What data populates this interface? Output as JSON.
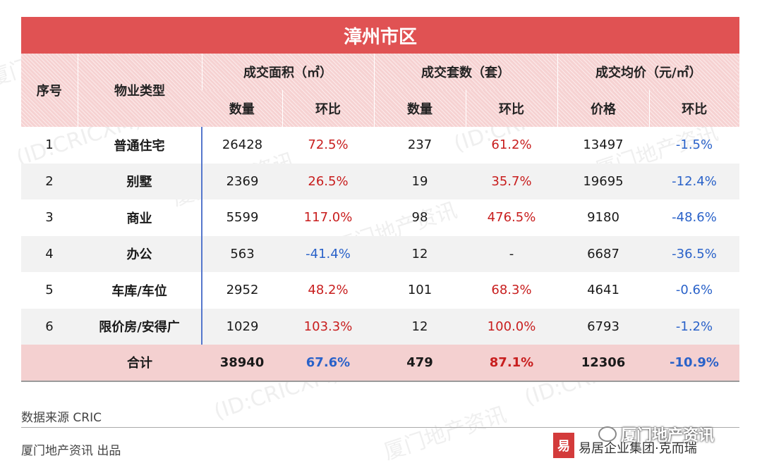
{
  "title": "漳州市区",
  "header": {
    "seq": "序号",
    "type": "物业类型",
    "group_area": "成交面积（㎡）",
    "group_units": "成交套数（套）",
    "group_price": "成交均价（元/㎡）",
    "qty": "数量",
    "mom": "环比",
    "price": "价格"
  },
  "rows": [
    {
      "seq": "1",
      "type": "普通住宅",
      "area": "26428",
      "area_mom": "72.5%",
      "units": "237",
      "units_mom": "61.2%",
      "price": "13497",
      "price_mom": "-1.5%"
    },
    {
      "seq": "2",
      "type": "别墅",
      "area": "2369",
      "area_mom": "26.5%",
      "units": "19",
      "units_mom": "35.7%",
      "price": "19695",
      "price_mom": "-12.4%"
    },
    {
      "seq": "3",
      "type": "商业",
      "area": "5599",
      "area_mom": "117.0%",
      "units": "98",
      "units_mom": "476.5%",
      "price": "9180",
      "price_mom": "-48.6%"
    },
    {
      "seq": "4",
      "type": "办公",
      "area": "563",
      "area_mom": "-41.4%",
      "units": "12",
      "units_mom": "-",
      "price": "6687",
      "price_mom": "-36.5%"
    },
    {
      "seq": "5",
      "type": "车库/车位",
      "area": "2952",
      "area_mom": "48.2%",
      "units": "101",
      "units_mom": "68.3%",
      "price": "4641",
      "price_mom": "-0.6%"
    },
    {
      "seq": "6",
      "type": "限价房/安得广",
      "area": "1029",
      "area_mom": "103.3%",
      "units": "12",
      "units_mom": "100.0%",
      "price": "6793",
      "price_mom": "-1.2%"
    }
  ],
  "total": {
    "label": "合计",
    "area": "38940",
    "area_mom": "67.6%",
    "units": "479",
    "units_mom": "87.1%",
    "price": "12306",
    "price_mom": "-10.9%"
  },
  "footer": {
    "source": "数据来源  CRIC",
    "publisher": "厦门地产资讯  出品",
    "brand_logo": "易",
    "brand_name": "易居企业集团·克而瑞",
    "wechat_name": "厦门地产资讯"
  },
  "watermark": [
    "厦门地产资讯",
    "(ID:CRICXM)"
  ],
  "colors": {
    "title_bg": "#e05253",
    "header_bg": "#f6d2d2",
    "positive": "#c81e1e",
    "negative": "#2a62c9",
    "total_bg": "#f4d0d0"
  }
}
